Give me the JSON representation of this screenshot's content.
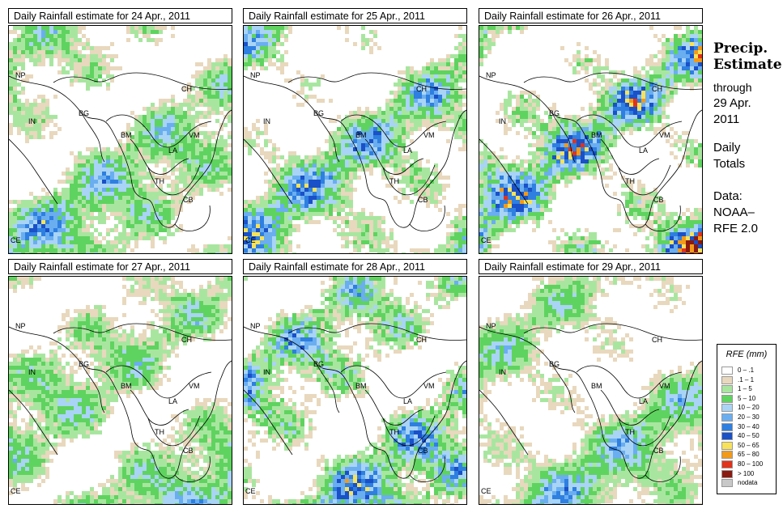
{
  "sidebar": {
    "title_line1": "Precip.",
    "title_line2": "Estimate",
    "through_label": "through",
    "through_date1": "29 Apr.",
    "through_date2": "2011",
    "totals_line1": "Daily",
    "totals_line2": "Totals",
    "data_label": "Data:",
    "data_source1": "NOAA–",
    "data_source2": "RFE 2.0"
  },
  "panels": [
    {
      "title": "Daily Rainfall estimate for  24 Apr., 2011",
      "intensity": 0.55
    },
    {
      "title": "Daily Rainfall estimate for  25 Apr., 2011",
      "intensity": 0.6
    },
    {
      "title": "Daily Rainfall estimate for  26 Apr., 2011",
      "intensity": 0.75
    },
    {
      "title": "Daily Rainfall estimate for  27 Apr., 2011",
      "intensity": 0.5
    },
    {
      "title": "Daily Rainfall estimate for  28 Apr., 2011",
      "intensity": 0.7
    },
    {
      "title": "Daily Rainfall estimate for  29 Apr., 2011",
      "intensity": 0.45
    }
  ],
  "country_labels": {
    "np": "NP",
    "ch": "CH",
    "in": "IN",
    "bg": "BG",
    "bm": "BM",
    "vm": "VM",
    "la": "LA",
    "th": "TH",
    "cb": "CB",
    "ce": "CE"
  },
  "legend": {
    "title": "RFE (mm)",
    "items": [
      {
        "label": "0 – .1",
        "color": "#ffffff"
      },
      {
        "label": ".1 – 1",
        "color": "#e8d8bd"
      },
      {
        "label": "1 – 5",
        "color": "#a8e6a0"
      },
      {
        "label": "5 – 10",
        "color": "#5fd35f"
      },
      {
        "label": "10 – 20",
        "color": "#a9d4f5"
      },
      {
        "label": "20 – 30",
        "color": "#6aaef0"
      },
      {
        "label": "30 – 40",
        "color": "#2e7fe0"
      },
      {
        "label": "40 – 50",
        "color": "#1a50c8"
      },
      {
        "label": "50 – 65",
        "color": "#f7e25a"
      },
      {
        "label": "65 – 80",
        "color": "#f29a1a"
      },
      {
        "label": "80 – 100",
        "color": "#e2321a"
      },
      {
        "label": "> 100",
        "color": "#8b1a10"
      },
      {
        "label": "nodata",
        "color": "#c8c8c8"
      }
    ]
  }
}
